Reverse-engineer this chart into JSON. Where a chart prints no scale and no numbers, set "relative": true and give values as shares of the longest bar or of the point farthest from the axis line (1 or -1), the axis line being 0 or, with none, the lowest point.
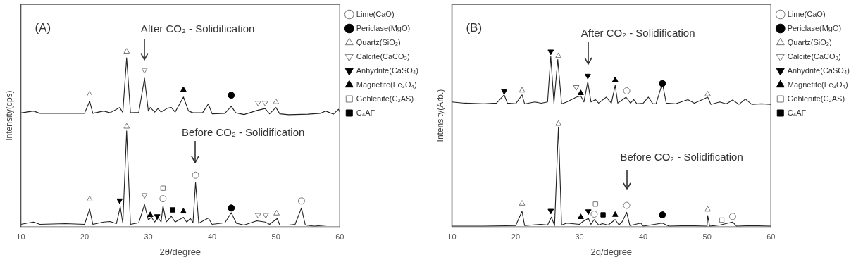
{
  "chart_data": [
    {
      "type": "line",
      "title": "(A)",
      "xlabel": "2θ/degree",
      "ylabel": "Intensity(cps)",
      "xlim": [
        10,
        60
      ],
      "xticks": [
        10,
        20,
        30,
        40,
        50,
        60
      ],
      "relative": true,
      "tick_labels": "x",
      "legend": "right",
      "annotations": [
        "After CO₂ - Solidification",
        "Before CO₂ - Solidification"
      ],
      "series": [
        {
          "type": "line",
          "color": "#222222",
          "x": [
            10,
            12,
            13,
            15,
            20,
            20.8,
            21.3,
            23,
            24,
            25.5,
            26,
            26.6,
            27.2,
            28.5,
            29.4,
            30,
            30.3,
            31,
            31.5,
            32,
            33,
            33.6,
            34.2,
            35.5,
            36.3,
            37,
            38.5,
            39.4,
            40,
            42,
            43,
            43.7,
            45,
            47,
            48.3,
            49,
            50,
            50.6,
            52,
            55,
            57,
            57.8,
            59,
            59.8,
            60
          ],
          "values": [
            0.65,
            0.661,
            0.648,
            0.648,
            0.648,
            0.717,
            0.648,
            0.661,
            0.651,
            0.681,
            0.653,
            0.965,
            0.651,
            0.653,
            0.848,
            0.661,
            0.681,
            0.655,
            0.675,
            0.655,
            0.677,
            0.681,
            0.655,
            0.741,
            0.661,
            0.651,
            0.651,
            0.701,
            0.645,
            0.648,
            0.688,
            0.651,
            0.641,
            0.664,
            0.675,
            0.645,
            0.681,
            0.645,
            0.64,
            0.643,
            0.648,
            0.661,
            0.643,
            0.671,
            0.655
          ]
        },
        {
          "type": "line",
          "color": "#222222",
          "x": [
            10,
            12,
            13,
            17,
            20,
            20.8,
            21.3,
            23,
            24,
            25,
            25.6,
            26,
            26.6,
            27.2,
            28.5,
            29.4,
            30,
            30.5,
            31,
            31.5,
            32,
            32.3,
            32.8,
            33.6,
            34.2,
            35.5,
            36,
            36.6,
            37,
            37.4,
            37.9,
            39.4,
            40,
            42,
            43,
            43.8,
            45,
            47,
            48.3,
            49,
            50.2,
            50.6,
            52,
            53,
            54,
            54.6,
            56,
            58,
            60
          ],
          "values": [
            0.015,
            0.028,
            0.015,
            0.019,
            0.015,
            0.101,
            0.015,
            0.028,
            0.031,
            0.019,
            0.115,
            0.021,
            0.548,
            0.015,
            0.024,
            0.128,
            0.041,
            0.055,
            0.028,
            0.055,
            0.028,
            0.121,
            0.028,
            0.061,
            0.028,
            0.055,
            0.028,
            0.048,
            0.024,
            0.255,
            0.021,
            0.051,
            0.015,
            0.024,
            0.081,
            0.021,
            0.011,
            0.035,
            0.028,
            0.015,
            0.048,
            0.011,
            0.011,
            0.015,
            0.108,
            0.011,
            0.005,
            0.011,
            0.011
          ]
        },
        {
          "type": "scatter",
          "name": "Lime(CaO)",
          "color": "#777777",
          "marker": "circle",
          "x": [
            32.3,
            37.4,
            54
          ],
          "values": [
            0.161,
            0.295,
            0.148
          ]
        },
        {
          "type": "scatter",
          "name": "Periclase(MgO)",
          "color": "#000000",
          "marker": "circle",
          "x": [
            43,
            43
          ],
          "values": [
            0.751,
            0.108
          ]
        },
        {
          "type": "scatter",
          "name": "Quartz(SiO₂)",
          "color": "#777777",
          "marker": "triangle",
          "x": [
            20.8,
            26.6,
            50,
            20.8,
            26.6,
            50.1
          ],
          "values": [
            0.755,
            1.0,
            0.712,
            0.157,
            0.572,
            0.077
          ]
        },
        {
          "type": "scatter",
          "name": "Calcite(CaCO₃)",
          "color": "#777777",
          "marker": "triangle-down",
          "x": [
            29.4,
            47.2,
            48.3,
            29.4,
            47.2,
            48.4
          ],
          "values": [
            0.895,
            0.708,
            0.708,
            0.181,
            0.068,
            0.068
          ]
        },
        {
          "type": "scatter",
          "name": "Anhydrite(CaSO₄)",
          "color": "#000000",
          "marker": "triangle-down",
          "x": [
            25.5,
            31.4
          ],
          "values": [
            0.151,
            0.061
          ]
        },
        {
          "type": "scatter",
          "name": "Magnetite(Fe₃O₄)",
          "color": "#000000",
          "marker": "triangle",
          "x": [
            35.5,
            30.3,
            35.5
          ],
          "values": [
            0.781,
            0.068,
            0.088
          ]
        },
        {
          "type": "scatter",
          "name": "Gehlenite(C₂AS)",
          "color": "#777777",
          "marker": "square",
          "x": [
            32.3
          ],
          "values": [
            0.221
          ]
        },
        {
          "type": "scatter",
          "name": "C₄AF",
          "color": "#000000",
          "marker": "square",
          "x": [
            33.8
          ],
          "values": [
            0.097
          ]
        }
      ]
    },
    {
      "type": "line",
      "title": "(B)",
      "xlabel": "2q/degree",
      "ylabel": "Intensity(Arb.)",
      "xlim": [
        10,
        60
      ],
      "xticks": [
        10,
        20,
        30,
        40,
        50,
        60
      ],
      "relative": true,
      "tick_labels": "x",
      "legend": "right",
      "annotations": [
        "After CO₂ - Solidification",
        "Before CO₂ - Solidification"
      ],
      "series": [
        {
          "type": "line",
          "color": "#222222",
          "x": [
            10,
            12,
            15,
            17,
            18.2,
            18.7,
            20,
            21,
            21.4,
            23,
            24,
            25,
            25.5,
            26,
            26.6,
            27.2,
            28,
            29.5,
            30.2,
            30.7,
            31.3,
            31.8,
            32.5,
            33,
            34.2,
            35,
            35.6,
            36,
            37.3,
            38,
            38.5,
            39,
            40,
            40.8,
            41.5,
            42,
            43,
            43.6,
            45,
            47,
            48,
            50.1,
            50.6,
            52,
            53,
            54,
            55,
            56,
            57,
            58.5,
            60
          ],
          "values": [
            0.713,
            0.706,
            0.702,
            0.706,
            0.753,
            0.706,
            0.702,
            0.753,
            0.702,
            0.713,
            0.706,
            0.713,
            0.973,
            0.706,
            0.955,
            0.702,
            0.713,
            0.74,
            0.747,
            0.713,
            0.828,
            0.713,
            0.726,
            0.706,
            0.74,
            0.706,
            0.808,
            0.706,
            0.74,
            0.706,
            0.726,
            0.702,
            0.706,
            0.74,
            0.702,
            0.702,
            0.821,
            0.706,
            0.702,
            0.726,
            0.706,
            0.74,
            0.699,
            0.713,
            0.702,
            0.724,
            0.699,
            0.729,
            0.699,
            0.702,
            0.699
          ]
        },
        {
          "type": "line",
          "color": "#222222",
          "x": [
            10,
            15,
            20,
            21,
            21.4,
            24,
            25,
            25.6,
            26.1,
            26.7,
            27.2,
            28,
            30,
            30.5,
            31.4,
            31.8,
            32.3,
            33,
            33.6,
            34.5,
            35.6,
            36.2,
            36.7,
            37.4,
            37.9,
            39.6,
            40,
            43,
            44,
            47,
            50,
            50.1,
            50.4,
            52,
            54,
            54.6,
            57,
            60
          ],
          "values": [
            0.005,
            0.005,
            0.008,
            0.089,
            0.008,
            0.015,
            0.011,
            0.056,
            0.008,
            0.57,
            0.011,
            0.022,
            0.015,
            0.03,
            0.049,
            0.015,
            0.042,
            0.011,
            0.019,
            0.011,
            0.042,
            0.011,
            0.03,
            0.083,
            0.008,
            0.022,
            0.005,
            0.022,
            0.005,
            0.008,
            0.005,
            0.065,
            0.005,
            0.011,
            0.028,
            0.005,
            0.008,
            0.005
          ]
        },
        {
          "type": "scatter",
          "name": "Lime(CaO)",
          "color": "#777777",
          "marker": "circle",
          "x": [
            37.4,
            32.3,
            37.4,
            54
          ],
          "values": [
            0.776,
            0.073,
            0.123,
            0.06
          ]
        },
        {
          "type": "scatter",
          "name": "Periclase(MgO)",
          "color": "#000000",
          "marker": "circle",
          "x": [
            43,
            43
          ],
          "values": [
            0.818,
            0.069
          ]
        },
        {
          "type": "scatter",
          "name": "Quartz(SiO₂)",
          "color": "#777777",
          "marker": "triangle",
          "x": [
            21,
            26.7,
            50.1,
            21,
            26.7,
            50.1
          ],
          "values": [
            0.778,
            0.975,
            0.756,
            0.133,
            0.588,
            0.099
          ]
        },
        {
          "type": "scatter",
          "name": "Calcite(CaCO₃)",
          "color": "#777777",
          "marker": "triangle-down",
          "x": [
            29.5
          ],
          "values": [
            0.797
          ]
        },
        {
          "type": "scatter",
          "name": "Anhydrite(CaSO₄)",
          "color": "#000000",
          "marker": "triangle-down",
          "x": [
            18.2,
            25.5,
            31.3,
            25.5,
            31.4
          ],
          "values": [
            0.774,
            1.0,
            0.862,
            0.092,
            0.089
          ]
        },
        {
          "type": "scatter",
          "name": "Magnetite(Fe₃O₄)",
          "color": "#000000",
          "marker": "triangle",
          "x": [
            30.2,
            35.6,
            30.2,
            35.6
          ],
          "values": [
            0.763,
            0.837,
            0.056,
            0.069
          ]
        },
        {
          "type": "scatter",
          "name": "Gehlenite(C₂AS)",
          "color": "#777777",
          "marker": "square",
          "x": [
            32.5,
            52.3
          ],
          "values": [
            0.13,
            0.039
          ]
        },
        {
          "type": "scatter",
          "name": "C₄AF",
          "color": "#000000",
          "marker": "square",
          "x": [
            33.7
          ],
          "values": [
            0.069
          ]
        }
      ]
    }
  ]
}
